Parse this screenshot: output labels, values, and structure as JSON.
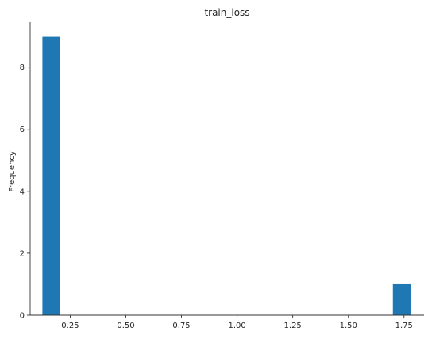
{
  "chart_data": {
    "type": "bar",
    "subtype": "histogram",
    "title": "train_loss",
    "xlabel": "",
    "ylabel": "Frequency",
    "bar_color": "#1f77b4",
    "axis_color": "#333333",
    "bins": [
      {
        "x0": 0.125,
        "x1": 0.205,
        "count": 9
      },
      {
        "x0": 1.7,
        "x1": 1.78,
        "count": 1
      }
    ],
    "xlim": [
      0.07,
      1.84
    ],
    "ylim": [
      0,
      9.45
    ],
    "xticks": [
      0.25,
      0.5,
      0.75,
      1.0,
      1.25,
      1.5,
      1.75
    ],
    "xtick_labels": [
      "0.25",
      "0.50",
      "0.75",
      "1.00",
      "1.25",
      "1.50",
      "1.75"
    ],
    "yticks": [
      0,
      2,
      4,
      6,
      8
    ],
    "ytick_labels": [
      "0",
      "2",
      "4",
      "6",
      "8"
    ],
    "grid": false,
    "spines": [
      "left",
      "bottom"
    ]
  }
}
